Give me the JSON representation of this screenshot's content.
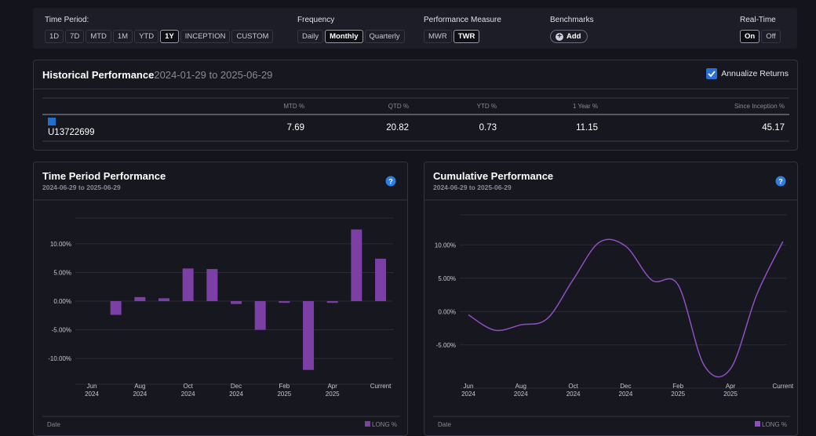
{
  "filters": [
    {
      "label": "Time Period:",
      "options": [
        "1D",
        "7D",
        "MTD",
        "1M",
        "YTD",
        "1Y",
        "INCEPTION",
        "CUSTOM"
      ],
      "selected": 5
    },
    {
      "label": "Frequency",
      "options": [
        "Daily",
        "Monthly",
        "Quarterly"
      ],
      "selected": 1
    },
    {
      "label": "Performance Measure",
      "options": [
        "MWR",
        "TWR"
      ],
      "selected": 1
    },
    {
      "label": "Benchmarks",
      "button": "Add"
    },
    {
      "label": "Real-Time",
      "options": [
        "On",
        "Off"
      ],
      "selected": 0
    }
  ],
  "historical": {
    "title": "Historical Performance",
    "date_range": "2024-01-29 to 2025-06-29",
    "annualize": "Annualize Returns",
    "annualize_checked": true,
    "columns": [
      "MTD %",
      "QTD %",
      "YTD %",
      "1 Year %",
      "Since Inception %"
    ],
    "rows": [
      {
        "account": "U13722699",
        "color": "#1f6fd1",
        "values": [
          7.69,
          20.82,
          0.73,
          11.15,
          45.17
        ]
      }
    ]
  },
  "chart_data": [
    {
      "type": "bar",
      "title": "Time Period Performance",
      "subtitle": "2024-06-29 to 2025-06-29",
      "x_label": "Date",
      "color": "#7b3fa6",
      "categories": [
        [
          "Jun",
          "2024"
        ],
        null,
        [
          "Aug",
          "2024"
        ],
        null,
        [
          "Oct",
          "2024"
        ],
        null,
        [
          "Dec",
          "2024"
        ],
        null,
        [
          "Feb",
          "2025"
        ],
        null,
        [
          "Apr",
          "2025"
        ],
        null,
        [
          "Current"
        ]
      ],
      "series": [
        {
          "name": "LONG %",
          "color": "#7b3fa6",
          "values": [
            null,
            -2.4,
            0.7,
            0.5,
            5.7,
            5.6,
            -0.5,
            -5.0,
            -0.3,
            -12.0,
            -0.3,
            12.5,
            7.4
          ]
        }
      ],
      "ylim": [
        -14.5,
        14.5
      ],
      "yticks": [
        {
          "value": -10,
          "label": "-10.00%"
        },
        {
          "value": -5,
          "label": "-5.00%"
        },
        {
          "value": 0,
          "label": "0.00%"
        },
        {
          "value": 5,
          "label": "5.00%"
        },
        {
          "value": 10,
          "label": "10.00%"
        }
      ],
      "grid": true
    },
    {
      "type": "line",
      "title": "Cumulative Performance",
      "subtitle": "2024-06-29 to 2025-06-29",
      "x_label": "Date",
      "color": "#8e4fc0",
      "categories": [
        [
          "Jun",
          "2024"
        ],
        null,
        [
          "Aug",
          "2024"
        ],
        null,
        [
          "Oct",
          "2024"
        ],
        null,
        [
          "Dec",
          "2024"
        ],
        null,
        [
          "Feb",
          "2025"
        ],
        null,
        [
          "Apr",
          "2025"
        ],
        null,
        [
          "Current"
        ]
      ],
      "series": [
        {
          "name": "LONG %",
          "color": "#8e4fc0",
          "values": [
            -0.5,
            -2.8,
            -2.0,
            -1.1,
            4.8,
            10.4,
            9.8,
            4.7,
            4.0,
            -8.1,
            -8.6,
            2.5,
            10.5
          ]
        }
      ],
      "ylim": [
        -11.5,
        14.5
      ],
      "yticks": [
        {
          "value": -5,
          "label": "-5.00%"
        },
        {
          "value": 0,
          "label": "0.00%"
        },
        {
          "value": 5,
          "label": "5.00%"
        },
        {
          "value": 10,
          "label": "10.00%"
        }
      ],
      "grid": true
    }
  ]
}
